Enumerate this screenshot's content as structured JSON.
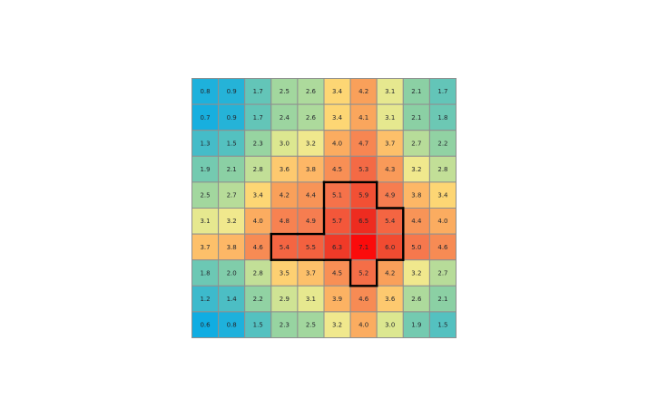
{
  "chart_data": {
    "type": "heatmap",
    "title": "",
    "rows": 10,
    "cols": 10,
    "values": [
      [
        0.8,
        0.9,
        1.7,
        2.5,
        2.6,
        3.4,
        4.2,
        3.1,
        2.1,
        1.7
      ],
      [
        0.7,
        0.9,
        1.7,
        2.4,
        2.6,
        3.4,
        4.1,
        3.1,
        2.1,
        1.8
      ],
      [
        1.3,
        1.5,
        2.3,
        3.0,
        3.2,
        4.0,
        4.7,
        3.7,
        2.7,
        2.2
      ],
      [
        1.9,
        2.1,
        2.8,
        3.6,
        3.8,
        4.5,
        5.3,
        4.3,
        3.2,
        2.8
      ],
      [
        2.5,
        2.7,
        3.4,
        4.2,
        4.4,
        5.1,
        5.9,
        4.9,
        3.8,
        3.4
      ],
      [
        3.1,
        3.2,
        4.0,
        4.8,
        4.9,
        5.7,
        6.5,
        5.4,
        4.4,
        4.0
      ],
      [
        3.7,
        3.8,
        4.6,
        5.4,
        5.5,
        6.3,
        7.1,
        6.0,
        5.0,
        4.6
      ],
      [
        1.8,
        2.0,
        2.8,
        3.5,
        3.7,
        4.5,
        5.2,
        4.2,
        3.2,
        2.7
      ],
      [
        1.2,
        1.4,
        2.2,
        2.9,
        3.1,
        3.9,
        4.6,
        3.6,
        2.6,
        2.1
      ],
      [
        0.6,
        0.8,
        1.5,
        2.3,
        2.5,
        3.2,
        4.0,
        3.0,
        1.9,
        1.5
      ]
    ],
    "value_min": 0.6,
    "value_max": 7.1,
    "value_format_decimals": 1,
    "highlight_region_cells": [
      [
        4,
        5
      ],
      [
        4,
        6
      ],
      [
        5,
        5
      ],
      [
        5,
        6
      ],
      [
        5,
        7
      ],
      [
        6,
        3
      ],
      [
        6,
        4
      ],
      [
        6,
        5
      ],
      [
        6,
        6
      ],
      [
        6,
        7
      ],
      [
        7,
        6
      ]
    ],
    "colors": {
      "background": "#ffffff",
      "grid_line": "#8f8f8f",
      "cell_text": "#25282e",
      "highlight_outline": "#000000"
    },
    "colormap_stops": [
      {
        "value": 0.6,
        "color": "#10ade2"
      },
      {
        "value": 1.0,
        "color": "#2cb5d5"
      },
      {
        "value": 1.3,
        "color": "#45bcc8"
      },
      {
        "value": 1.7,
        "color": "#63c5b8"
      },
      {
        "value": 1.9,
        "color": "#74cab0"
      },
      {
        "value": 2.1,
        "color": "#8bd0a4"
      },
      {
        "value": 2.5,
        "color": "#a2d79e"
      },
      {
        "value": 2.8,
        "color": "#c2df97"
      },
      {
        "value": 3.0,
        "color": "#dce790"
      },
      {
        "value": 3.2,
        "color": "#f0e88d"
      },
      {
        "value": 3.4,
        "color": "#fdd674"
      },
      {
        "value": 3.6,
        "color": "#fdc96f"
      },
      {
        "value": 3.8,
        "color": "#fdb766"
      },
      {
        "value": 4.0,
        "color": "#fbac60"
      },
      {
        "value": 4.2,
        "color": "#f9a05a"
      },
      {
        "value": 4.4,
        "color": "#f89457"
      },
      {
        "value": 4.7,
        "color": "#f78652"
      },
      {
        "value": 4.9,
        "color": "#f67d50"
      },
      {
        "value": 5.1,
        "color": "#f5724a"
      },
      {
        "value": 5.3,
        "color": "#f46a45"
      },
      {
        "value": 5.5,
        "color": "#f4613f"
      },
      {
        "value": 5.7,
        "color": "#f3573a"
      },
      {
        "value": 5.9,
        "color": "#f25034"
      },
      {
        "value": 6.0,
        "color": "#f14b31"
      },
      {
        "value": 6.3,
        "color": "#f03a28"
      },
      {
        "value": 6.5,
        "color": "#ee2c20"
      },
      {
        "value": 6.8,
        "color": "#f41d15"
      },
      {
        "value": 7.1,
        "color": "#fb0b0b"
      }
    ],
    "layout": {
      "grid_on": true,
      "legend": "none",
      "axes_labels": "none"
    }
  }
}
